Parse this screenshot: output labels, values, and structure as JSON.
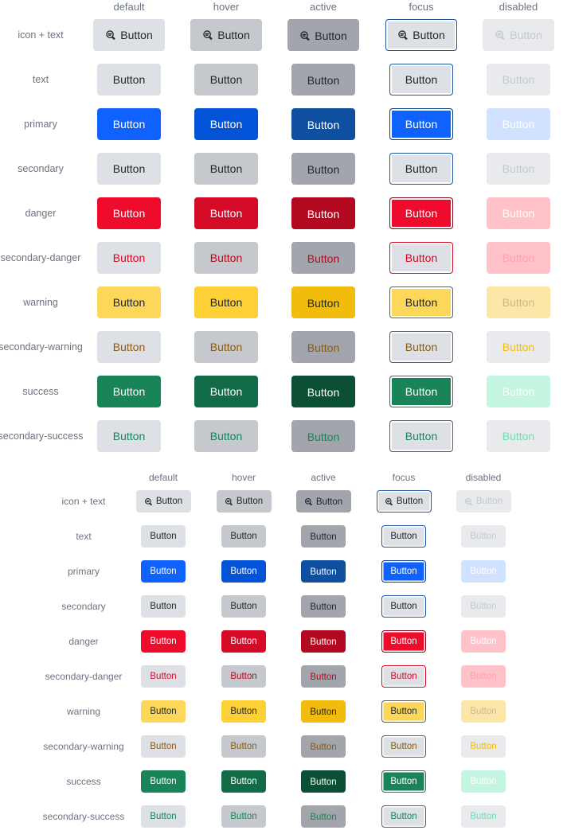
{
  "states": [
    {
      "key": "default",
      "label": "default"
    },
    {
      "key": "hover",
      "label": "hover"
    },
    {
      "key": "active",
      "label": "active"
    },
    {
      "key": "focus",
      "label": "focus"
    },
    {
      "key": "disabled",
      "label": "disabled"
    }
  ],
  "button_label": "Button",
  "icon": "search-comment-icon",
  "rows": [
    {
      "key": "icon-text",
      "label": "icon + text",
      "has_icon": true,
      "styles": {
        "default": {
          "bg": "#dde1e6",
          "fg": "#21272a",
          "border": "#dde1e6"
        },
        "hover": {
          "bg": "#c5c9cd",
          "fg": "#21272a",
          "border": "#c5c9cd"
        },
        "active": {
          "bg": "#a2a5ab",
          "fg": "#21272a",
          "border": "#a2a5ab"
        },
        "focus": {
          "bg": "#dde1e6",
          "fg": "#21272a",
          "border": "#1f57a8",
          "ring": "#ffffff"
        },
        "disabled": {
          "bg": "#e8eaed",
          "fg": "#c5c9cd",
          "border": "#e8eaed"
        }
      }
    },
    {
      "key": "text",
      "label": "text",
      "has_icon": false,
      "styles": {
        "default": {
          "bg": "#dde1e6",
          "fg": "#21272a",
          "border": "#dde1e6"
        },
        "hover": {
          "bg": "#c5c9cd",
          "fg": "#21272a",
          "border": "#c5c9cd"
        },
        "active": {
          "bg": "#a2a5ab",
          "fg": "#21272a",
          "border": "#a2a5ab"
        },
        "focus": {
          "bg": "#dde1e6",
          "fg": "#21272a",
          "border": "#1f57a8",
          "ring": "#ffffff"
        },
        "disabled": {
          "bg": "#e8eaed",
          "fg": "#c5c9cd",
          "border": "#e8eaed"
        }
      }
    },
    {
      "key": "primary",
      "label": "primary",
      "has_icon": false,
      "styles": {
        "default": {
          "bg": "#0f62fe",
          "fg": "#ffffff",
          "border": "#0f62fe"
        },
        "hover": {
          "bg": "#0353d9",
          "fg": "#ffffff",
          "border": "#0353d9"
        },
        "active": {
          "bg": "#0e4f9f",
          "fg": "#ffffff",
          "border": "#0e4f9f"
        },
        "focus": {
          "bg": "#0f62fe",
          "fg": "#ffffff",
          "border": "#0e3f8f",
          "ring": "#ffffff"
        },
        "disabled": {
          "bg": "#d0e2ff",
          "fg": "#ffffff",
          "border": "#d0e2ff"
        }
      }
    },
    {
      "key": "secondary",
      "label": "secondary",
      "has_icon": false,
      "styles": {
        "default": {
          "bg": "#dde1e6",
          "fg": "#21272a",
          "border": "#dde1e6"
        },
        "hover": {
          "bg": "#c5c9cd",
          "fg": "#21272a",
          "border": "#c5c9cd"
        },
        "active": {
          "bg": "#a2a5ab",
          "fg": "#21272a",
          "border": "#a2a5ab"
        },
        "focus": {
          "bg": "#dde1e6",
          "fg": "#21272a",
          "border": "#1f57a8",
          "ring": "#ffffff"
        },
        "disabled": {
          "bg": "#e8eaed",
          "fg": "#c5c9cd",
          "border": "#e8eaed"
        }
      }
    },
    {
      "key": "danger",
      "label": "danger",
      "has_icon": false,
      "styles": {
        "default": {
          "bg": "#ee0b2c",
          "fg": "#ffffff",
          "border": "#ee0b2c"
        },
        "hover": {
          "bg": "#d40a27",
          "fg": "#ffffff",
          "border": "#d40a27"
        },
        "active": {
          "bg": "#b30920",
          "fg": "#ffffff",
          "border": "#b30920"
        },
        "focus": {
          "bg": "#ee0b2c",
          "fg": "#ffffff",
          "border": "#8a0718",
          "ring": "#ffffff"
        },
        "disabled": {
          "bg": "#ffc2c8",
          "fg": "#ffffff",
          "border": "#ffc2c8"
        }
      }
    },
    {
      "key": "secondary-danger",
      "label": "secondary-danger",
      "has_icon": false,
      "styles": {
        "default": {
          "bg": "#dde1e6",
          "fg": "#d40a27",
          "border": "#dde1e6"
        },
        "hover": {
          "bg": "#c5c9cd",
          "fg": "#b30920",
          "border": "#c5c9cd"
        },
        "active": {
          "bg": "#a2a5ab",
          "fg": "#b30920",
          "border": "#a2a5ab"
        },
        "focus": {
          "bg": "#dde1e6",
          "fg": "#d40a27",
          "border": "#d40a27",
          "ring": "#ffffff"
        },
        "disabled": {
          "bg": "#ffc2c8",
          "fg": "#ffa3ad",
          "border": "#ffc2c8"
        }
      }
    },
    {
      "key": "warning",
      "label": "warning",
      "has_icon": false,
      "styles": {
        "default": {
          "bg": "#fdd75a",
          "fg": "#21272a",
          "border": "#fdd75a"
        },
        "hover": {
          "bg": "#fdd036",
          "fg": "#21272a",
          "border": "#fdd036"
        },
        "active": {
          "bg": "#f2bc0c",
          "fg": "#21272a",
          "border": "#f2bc0c"
        },
        "focus": {
          "bg": "#fdd75a",
          "fg": "#21272a",
          "border": "#5b5f63",
          "ring": "#ffffff"
        },
        "disabled": {
          "bg": "#fde7a8",
          "fg": "#c9b98a",
          "border": "#fde7a8"
        }
      }
    },
    {
      "key": "secondary-warning",
      "label": "secondary-warning",
      "has_icon": false,
      "styles": {
        "default": {
          "bg": "#dde1e6",
          "fg": "#8a5a12",
          "border": "#dde1e6"
        },
        "hover": {
          "bg": "#c5c9cd",
          "fg": "#8a5a12",
          "border": "#c5c9cd"
        },
        "active": {
          "bg": "#a2a5ab",
          "fg": "#8a5a12",
          "border": "#a2a5ab"
        },
        "focus": {
          "bg": "#dde1e6",
          "fg": "#8a5a12",
          "border": "#5b5f63",
          "ring": "#ffffff"
        },
        "disabled": {
          "bg": "#e8eaed",
          "fg": "#f2bc0c",
          "border": "#e8eaed"
        }
      }
    },
    {
      "key": "success",
      "label": "success",
      "has_icon": false,
      "styles": {
        "default": {
          "bg": "#188458",
          "fg": "#ffffff",
          "border": "#188458"
        },
        "hover": {
          "bg": "#116b47",
          "fg": "#ffffff",
          "border": "#116b47"
        },
        "active": {
          "bg": "#0b4f34",
          "fg": "#ffffff",
          "border": "#0b4f34"
        },
        "focus": {
          "bg": "#188458",
          "fg": "#ffffff",
          "border": "#5b5f63",
          "ring": "#ffffff"
        },
        "disabled": {
          "bg": "#c3f5e1",
          "fg": "#ffffff",
          "border": "#c3f5e1"
        }
      }
    },
    {
      "key": "secondary-success",
      "label": "secondary-success",
      "has_icon": false,
      "styles": {
        "default": {
          "bg": "#dde1e6",
          "fg": "#188458",
          "border": "#dde1e6"
        },
        "hover": {
          "bg": "#c5c9cd",
          "fg": "#188458",
          "border": "#c5c9cd"
        },
        "active": {
          "bg": "#a2a5ab",
          "fg": "#188458",
          "border": "#a2a5ab"
        },
        "focus": {
          "bg": "#dde1e6",
          "fg": "#188458",
          "border": "#5b5f63",
          "ring": "#ffffff"
        },
        "disabled": {
          "bg": "#e8eaed",
          "fg": "#6fdcb0",
          "border": "#e8eaed"
        }
      }
    }
  ]
}
